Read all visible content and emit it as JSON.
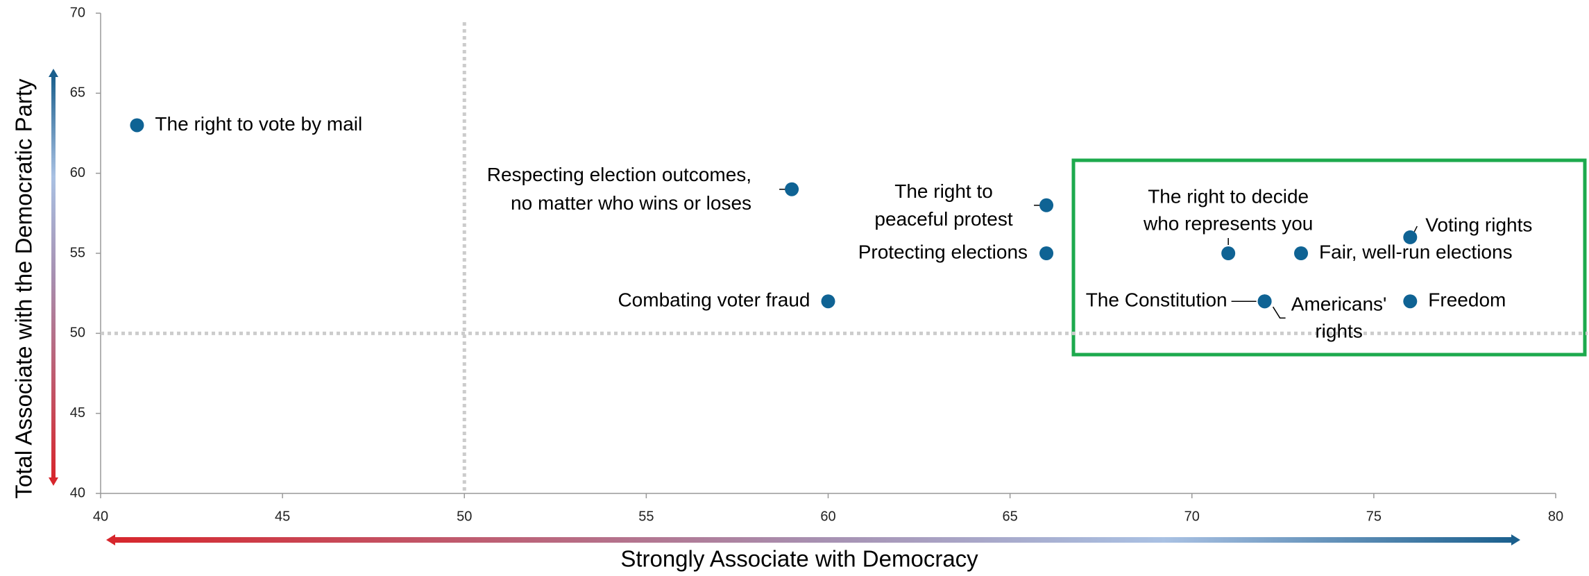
{
  "chart_data": {
    "type": "scatter",
    "x_label": "Strongly Associate with Democracy",
    "y_label": "Total Associate with the Democratic Party",
    "x": [
      41,
      59,
      66,
      66,
      60,
      71,
      73,
      76,
      72,
      72,
      76
    ],
    "values": [
      63,
      59,
      58,
      55,
      52,
      55,
      55,
      56,
      52,
      52,
      52
    ],
    "labels": [
      [
        "The right to vote by mail"
      ],
      [
        "Respecting election outcomes,",
        "no matter who wins or loses"
      ],
      [
        "The right to",
        "peaceful protest"
      ],
      [
        "Protecting elections"
      ],
      [
        "Combating voter fraud"
      ],
      [
        "The right to decide",
        "who represents you"
      ],
      [
        "Fair, well-run elections"
      ],
      [
        "Voting rights"
      ],
      [
        "The Constitution"
      ],
      [
        "Americans'",
        "rights"
      ],
      [
        "Freedom"
      ]
    ],
    "color": "#0f6394",
    "xlim": [
      40,
      80
    ],
    "xticks": [
      40,
      45,
      50,
      55,
      60,
      65,
      70,
      75,
      80
    ],
    "ylim": [
      40,
      70
    ],
    "yticks": [
      40,
      45,
      50,
      55,
      60,
      65,
      70
    ],
    "reference_lines": {
      "x": 50,
      "y": 50
    }
  }
}
